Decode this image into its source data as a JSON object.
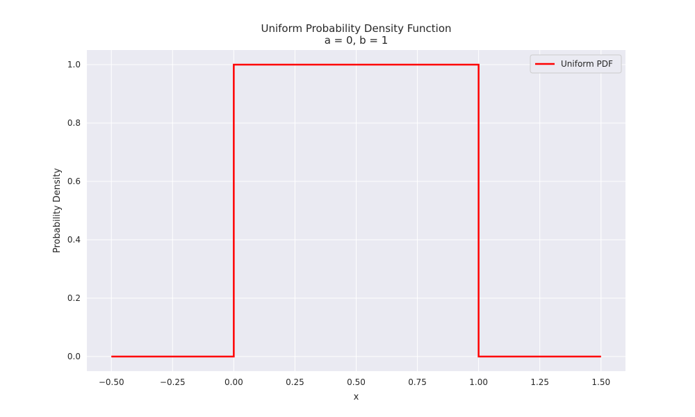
{
  "chart_data": {
    "type": "line",
    "title": "Uniform Probability Density Function",
    "subtitle": "a = 0, b = 1",
    "xlabel": "x",
    "ylabel": "Probability Density",
    "xlim": [
      -0.6,
      1.6
    ],
    "ylim": [
      -0.05,
      1.05
    ],
    "xticks": [
      -0.5,
      -0.25,
      0.0,
      0.25,
      0.5,
      0.75,
      1.0,
      1.25,
      1.5
    ],
    "xtick_labels": [
      "−0.50",
      "−0.25",
      "0.00",
      "0.25",
      "0.50",
      "0.75",
      "1.00",
      "1.25",
      "1.50"
    ],
    "yticks": [
      0.0,
      0.2,
      0.4,
      0.6,
      0.8,
      1.0
    ],
    "ytick_labels": [
      "0.0",
      "0.2",
      "0.4",
      "0.6",
      "0.8",
      "1.0"
    ],
    "grid": true,
    "legend_position": "top-right",
    "series": [
      {
        "name": "Uniform PDF",
        "color": "#ff0000",
        "x": [
          -0.5,
          0.0,
          0.0,
          1.0,
          1.0,
          1.5
        ],
        "y": [
          0.0,
          0.0,
          1.0,
          1.0,
          0.0,
          0.0
        ]
      }
    ]
  }
}
